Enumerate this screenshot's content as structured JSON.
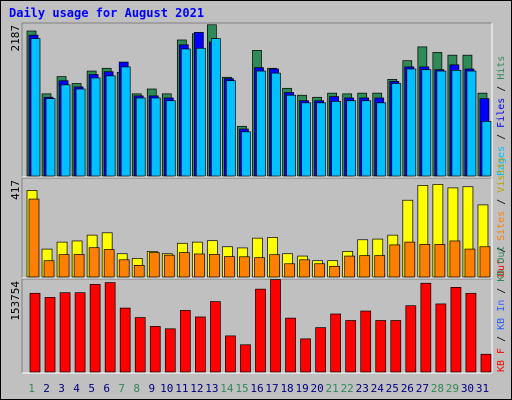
{
  "title": "Daily usage for August 2021",
  "chart_data": [
    {
      "type": "bar",
      "panel": "top",
      "max_label": "2187",
      "ylim": [
        0,
        2187
      ],
      "categories": [
        "1",
        "2",
        "3",
        "4",
        "5",
        "6",
        "7",
        "8",
        "9",
        "10",
        "11",
        "12",
        "13",
        "14",
        "15",
        "16",
        "17",
        "18",
        "19",
        "20",
        "21",
        "22",
        "23",
        "24",
        "25",
        "26",
        "27",
        "28",
        "29",
        "30",
        "31"
      ],
      "weekend_days": [
        "1",
        "7",
        "8",
        "14",
        "15",
        "21",
        "22",
        "28",
        "29"
      ],
      "series": [
        {
          "name": "Hits",
          "color": "#2e8b57",
          "values": [
            2100,
            1190,
            1440,
            1340,
            1520,
            1560,
            1500,
            1190,
            1260,
            1190,
            1970,
            2060,
            2190,
            1430,
            720,
            1820,
            1560,
            1270,
            1170,
            1140,
            1200,
            1190,
            1200,
            1200,
            1400,
            1670,
            1870,
            1790,
            1750,
            1750,
            1200
          ]
        },
        {
          "name": "Files",
          "color": "#0000ff",
          "values": [
            2040,
            1140,
            1380,
            1290,
            1470,
            1510,
            1650,
            1160,
            1160,
            1130,
            1900,
            2080,
            1940,
            1410,
            680,
            1570,
            1550,
            1210,
            1090,
            1090,
            1150,
            1130,
            1130,
            1130,
            1370,
            1580,
            1580,
            1540,
            1610,
            1550,
            1120
          ]
        },
        {
          "name": "Pages",
          "color": "#00c0ff",
          "values": [
            1990,
            1120,
            1320,
            1260,
            1420,
            1450,
            1580,
            1130,
            1130,
            1090,
            1840,
            1850,
            1990,
            1380,
            640,
            1520,
            1490,
            1170,
            1060,
            1060,
            1080,
            1090,
            1090,
            1060,
            1340,
            1550,
            1540,
            1520,
            1530,
            1520,
            790
          ]
        }
      ],
      "axis_label_parts": [
        "Pages",
        "Files",
        "Hits"
      ]
    },
    {
      "type": "bar",
      "panel": "middle",
      "max_label": "417",
      "ylim": [
        0,
        417
      ],
      "series": [
        {
          "name": "Visits",
          "color": "#ffff00",
          "values": [
            372,
            120,
            150,
            155,
            180,
            190,
            100,
            80,
            110,
            100,
            145,
            150,
            156,
            130,
            125,
            167,
            170,
            100,
            90,
            70,
            70,
            110,
            160,
            163,
            180,
            330,
            394,
            398,
            383,
            388,
            310
          ]
        },
        {
          "name": "Sites",
          "color": "#ff8000",
          "values": [
            335,
            70,
            96,
            97,
            126,
            118,
            74,
            50,
            105,
            94,
            105,
            99,
            97,
            88,
            87,
            83,
            96,
            57,
            74,
            57,
            46,
            90,
            92,
            92,
            138,
            150,
            140,
            140,
            155,
            120,
            130
          ]
        }
      ],
      "axis_label_parts": [
        "Sites",
        "Visits"
      ],
      "axis_label_extra": [
        "Out"
      ]
    },
    {
      "type": "bar",
      "panel": "bottom",
      "max_label": "153754",
      "ylim": [
        0,
        153754
      ],
      "series": [
        {
          "name": "KBytes",
          "color": "#ff0000",
          "values": [
            133000,
            126000,
            134000,
            134000,
            148000,
            151000,
            108000,
            92000,
            77000,
            73000,
            104000,
            93000,
            119000,
            61000,
            46000,
            140000,
            156000,
            91000,
            56000,
            75000,
            98000,
            87000,
            103000,
            87000,
            87000,
            112000,
            150000,
            115000,
            143000,
            133000,
            30000
          ]
        }
      ],
      "axis_label_parts": [
        "KB F",
        "KB In",
        "KB Out"
      ]
    }
  ],
  "colors": {
    "frame_bg": "#c0c0c0",
    "plot_bg": "#c0c0c0",
    "title": "#0000ff",
    "weekday_label": "#000080",
    "weekend_label": "#2e8b57"
  }
}
